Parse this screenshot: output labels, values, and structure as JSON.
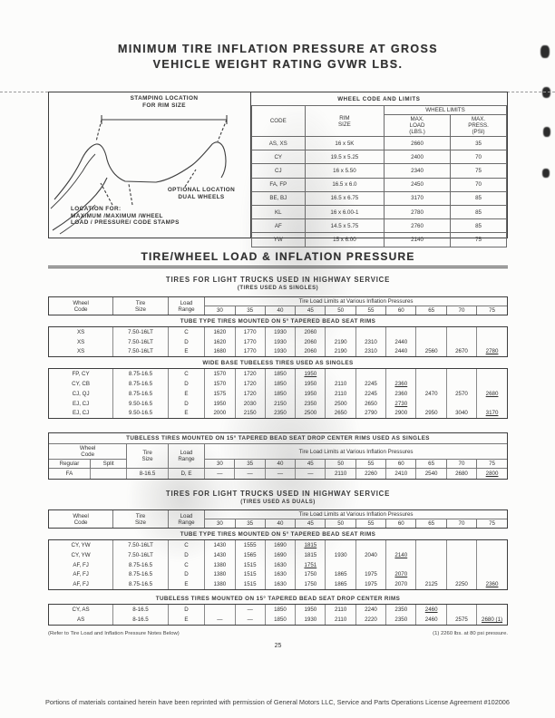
{
  "page": {
    "title_line1": "MINIMUM TIRE INFLATION PRESSURE AT GROSS",
    "title_line2": "VEHICLE WEIGHT RATING GVWR LBS.",
    "page_number": "25",
    "license_line": "Portions of materials contained herein have been reprinted with permission of General Motors LLC, Service and Parts Operations License Agreement #102006"
  },
  "diagram": {
    "stamping_label": "STAMPING LOCATION\nFOR RIM SIZE",
    "optional_label": "OPTIONAL LOCATION\nDUAL WHEELS",
    "location_label": "LOCATION FOR:\nMAXIMUM /MAXIMUM /WHEEL\nLOAD   / PRESSURE/  CODE STAMPS"
  },
  "wheel_limits_table": {
    "title": "WHEEL CODE AND LIMITS",
    "col_code": "CODE",
    "col_rim": "RIM\nSIZE",
    "group_limits": "WHEEL LIMITS",
    "col_load": "MAX.\nLOAD\n(LBS.)",
    "col_press": "MAX.\nPRESS.\n(PSI)",
    "rows": [
      [
        "AS, XS",
        "16 x 5K",
        "2660",
        "35"
      ],
      [
        "CY",
        "19.5 x 5.25",
        "2400",
        "70"
      ],
      [
        "CJ",
        "16 x 5.50",
        "2340",
        "75"
      ],
      [
        "FA, FP",
        "16.5 x 6.0",
        "2450",
        "70"
      ],
      [
        "BE, BJ",
        "16.5 x 6.75",
        "3170",
        "85"
      ],
      [
        "KL",
        "16 x 6.00-1",
        "2780",
        "85"
      ],
      [
        "AF",
        "14.5 x 5.75",
        "2760",
        "85"
      ],
      [
        "YW",
        "15 x 6.00",
        "2140",
        "75"
      ]
    ]
  },
  "section": {
    "main_heading": "TIRE/WHEEL LOAD & INFLATION PRESSURE",
    "singles_heading": "TIRES FOR LIGHT TRUCKS USED IN HIGHWAY SERVICE",
    "singles_subheading": "(TIRES USED AS SINGLES)",
    "duals_heading": "TIRES FOR LIGHT TRUCKS USED IN HIGHWAY SERVICE",
    "duals_subheading": "(TIRES USED AS DUALS)"
  },
  "load_table_headers": {
    "wheel_code": "Wheel\nCode",
    "tire_size": "Tire\nSize",
    "load_range": "Load\nRange",
    "limits_caption": "Tire Load Limits at Various Inflation Pressures",
    "regular": "Regular",
    "split": "Split",
    "pressures": [
      "30",
      "35",
      "40",
      "45",
      "50",
      "55",
      "60",
      "65",
      "70",
      "75"
    ]
  },
  "bands": {
    "tube_type_singles": "TUBE TYPE TIRES MOUNTED ON 5° TAPERED BEAD SEAT RIMS",
    "wide_base_singles": "WIDE BASE TUBELESS TIRES USED AS SINGLES",
    "tubeless_singles": "TUBELESS TIRES MOUNTED ON 15° TAPERED BEAD SEAT DROP CENTER RIMS USED AS SINGLES",
    "tube_type_duals": "TUBE TYPE TIRES MOUNTED ON 5° TAPERED BEAD SEAT RIMS",
    "tubeless_duals": "TUBELESS TIRES MOUNTED ON 15° TAPERED BEAD SEAT DROP CENTER RIMS"
  },
  "tables": {
    "singles_tube": {
      "rows": [
        [
          "XS",
          "7.50-16LT",
          "C",
          "1620",
          "1770",
          "1930",
          "2060",
          "",
          "",
          "",
          "",
          "",
          ""
        ],
        [
          "XS",
          "7.50-16LT",
          "D",
          "1620",
          "1770",
          "1930",
          "2060",
          "2190",
          "2310",
          "2440",
          "",
          "",
          ""
        ],
        [
          "XS",
          "7.50-16LT",
          "E",
          "1680",
          "1770",
          "1930",
          "2060",
          "2190",
          "2310",
          "2440",
          "2560",
          "2670",
          {
            "t": "2780",
            "u": true
          }
        ]
      ]
    },
    "singles_wide": {
      "rows": [
        [
          "FP, CY",
          "8.75-16.5",
          "C",
          "1570",
          "1720",
          "1850",
          {
            "t": "1950",
            "u": true
          },
          "",
          "",
          "",
          "",
          "",
          ""
        ],
        [
          "CY, CB",
          "8.75-16.5",
          "D",
          "1570",
          "1720",
          "1850",
          "1950",
          "2110",
          "2245",
          {
            "t": "2360",
            "u": true
          },
          "",
          "",
          ""
        ],
        [
          "CJ, QJ",
          "8.75-16.5",
          "E",
          "1575",
          "1720",
          "1850",
          "1950",
          "2110",
          "2245",
          "2360",
          "2470",
          "2570",
          {
            "t": "2680",
            "u": true
          }
        ],
        [
          "EJ, CJ",
          "9.50-16.5",
          "D",
          "1950",
          "2030",
          "2150",
          "2350",
          "2500",
          "2650",
          {
            "t": "2730",
            "u": true
          },
          "",
          "",
          ""
        ],
        [
          "EJ, CJ",
          "9.50-16.5",
          "E",
          "2000",
          "2150",
          "2350",
          "2500",
          "2650",
          "2790",
          "2900",
          "2950",
          "3040",
          {
            "t": "3170",
            "u": true
          }
        ]
      ]
    },
    "singles_tubeless": {
      "rows": [
        [
          "FA",
          "",
          "8-16.5",
          "D, E",
          "—",
          "—",
          "—",
          "—",
          "2110",
          "2260",
          "2410",
          "2540",
          "2680",
          {
            "t": "2800",
            "u": true
          }
        ]
      ]
    },
    "duals_tube": {
      "rows": [
        [
          "CY, YW",
          "7.50-16LT",
          "C",
          "1430",
          "1555",
          "1690",
          {
            "t": "1815",
            "u": true
          },
          "",
          "",
          "",
          "",
          "",
          ""
        ],
        [
          "CY, YW",
          "7.50-16LT",
          "D",
          "1430",
          "1565",
          "1690",
          "1815",
          "1930",
          "2040",
          {
            "t": "2140",
            "u": true
          },
          "",
          "",
          ""
        ],
        [
          "AF, FJ",
          "8.75-16.5",
          "C",
          "1380",
          "1515",
          "1630",
          {
            "t": "1751",
            "u": true
          },
          "",
          "",
          "",
          "",
          "",
          ""
        ],
        [
          "AF, FJ",
          "8.75-16.5",
          "D",
          "1380",
          "1515",
          "1630",
          "1750",
          "1865",
          "1975",
          {
            "t": "2070",
            "u": true
          },
          "",
          "",
          ""
        ],
        [
          "AF, FJ",
          "8.75-16.5",
          "E",
          "1380",
          "1515",
          "1630",
          "1750",
          "1865",
          "1975",
          "2070",
          "2125",
          "2250",
          {
            "t": "2360",
            "u": true
          }
        ]
      ]
    },
    "duals_tubeless": {
      "rows": [
        [
          "CY, AS",
          "8-16.5",
          "D",
          "",
          "—",
          "1850",
          "1950",
          "2110",
          "2240",
          "2350",
          {
            "t": "2460",
            "u": true
          },
          "",
          ""
        ],
        [
          "AS",
          "8-16.5",
          "E",
          "—",
          "—",
          "1850",
          "1930",
          "2110",
          "2220",
          "2350",
          "2460",
          "2575",
          {
            "t": "2680 (1)",
            "u": true
          }
        ]
      ]
    }
  },
  "footnotes": {
    "left": "(Refer to Tire Load and Inflation Pressure Notes Below)",
    "right": "(1) 2260 lbs. at 80 psi pressure."
  }
}
